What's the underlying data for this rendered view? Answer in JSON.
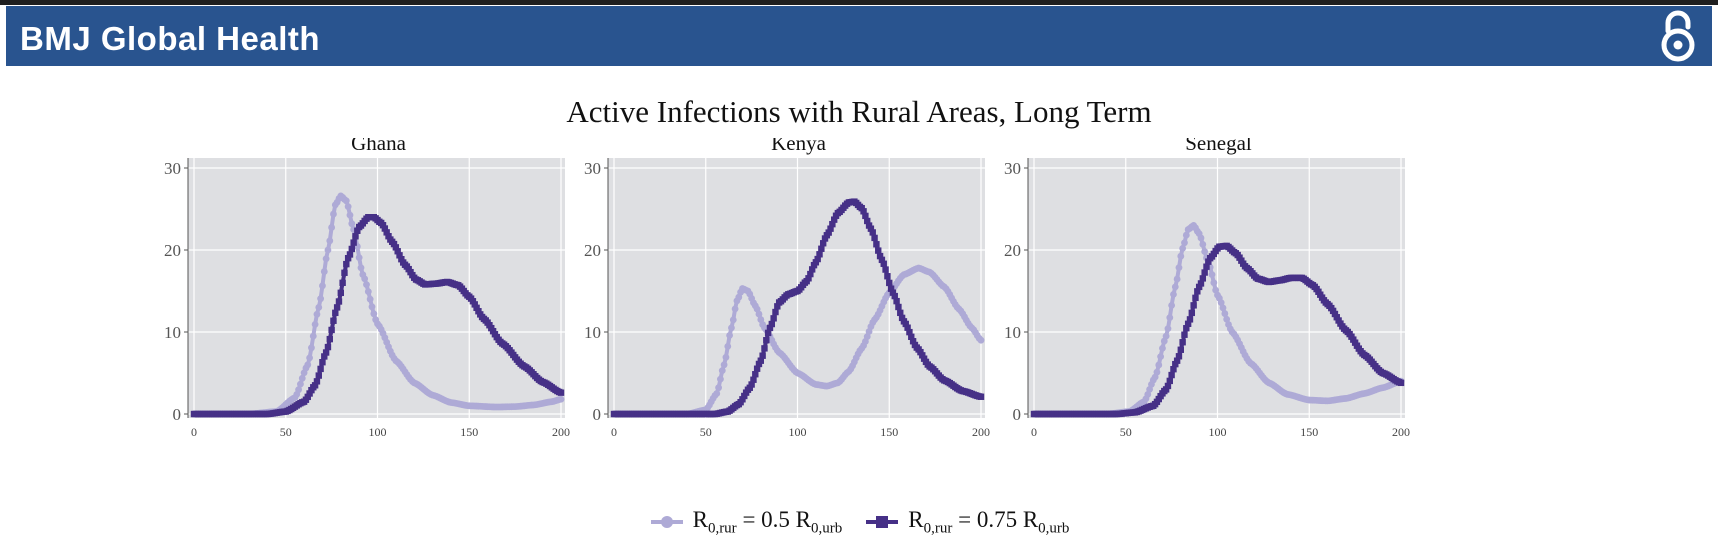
{
  "header": {
    "journal": "BMJ Global Health",
    "icon": "open-access-icon"
  },
  "colors": {
    "banner": "#29548f",
    "rural_050": "#aeaad6",
    "rural_075": "#463087",
    "panel_bg": "#dedfe2"
  },
  "chart_data": {
    "type": "line",
    "title": "Active Infections with Rural Areas, Long Term",
    "xlim": [
      0,
      200
    ],
    "ylim": [
      0,
      30
    ],
    "xticks": [
      0,
      50,
      100,
      150,
      200
    ],
    "yticks": [
      0,
      10,
      20,
      30
    ],
    "grid": true,
    "legend_position": "bottom",
    "legend": [
      {
        "pre": "R",
        "sub1": "0,rur",
        "mid": " = 0.5 R",
        "sub2": "0,urb",
        "marker": "circle"
      },
      {
        "pre": "R",
        "sub1": "0,rur",
        "mid": " = 0.75 R",
        "sub2": "0,urb",
        "marker": "square"
      }
    ],
    "panels": [
      {
        "name": "Ghana",
        "series": [
          {
            "values": [
              [
                0,
                0
              ],
              [
                30,
                0
              ],
              [
                45,
                0.3
              ],
              [
                55,
                2
              ],
              [
                62,
                6
              ],
              [
                68,
                13
              ],
              [
                73,
                20
              ],
              [
                77,
                25.5
              ],
              [
                80,
                26.6
              ],
              [
                83,
                26
              ],
              [
                87,
                22.5
              ],
              [
                92,
                17
              ],
              [
                100,
                11
              ],
              [
                110,
                6.5
              ],
              [
                120,
                3.8
              ],
              [
                130,
                2.3
              ],
              [
                140,
                1.4
              ],
              [
                150,
                1
              ],
              [
                165,
                0.85
              ],
              [
                175,
                0.9
              ],
              [
                185,
                1.1
              ],
              [
                195,
                1.5
              ],
              [
                200,
                1.8
              ]
            ]
          },
          {
            "values": [
              [
                0,
                0
              ],
              [
                40,
                0
              ],
              [
                50,
                0.3
              ],
              [
                60,
                1.5
              ],
              [
                66,
                3.5
              ],
              [
                72,
                7.5
              ],
              [
                78,
                13
              ],
              [
                84,
                19
              ],
              [
                90,
                22.8
              ],
              [
                95,
                24
              ],
              [
                98,
                24
              ],
              [
                102,
                23.3
              ],
              [
                108,
                21
              ],
              [
                115,
                18.2
              ],
              [
                121,
                16.4
              ],
              [
                126,
                15.8
              ],
              [
                132,
                15.9
              ],
              [
                138,
                16.1
              ],
              [
                144,
                15.7
              ],
              [
                150,
                14.3
              ],
              [
                158,
                11.6
              ],
              [
                168,
                8.6
              ],
              [
                180,
                5.8
              ],
              [
                190,
                3.9
              ],
              [
                200,
                2.6
              ]
            ]
          }
        ]
      },
      {
        "name": "Kenya",
        "series": [
          {
            "values": [
              [
                0,
                0
              ],
              [
                40,
                0
              ],
              [
                50,
                0.5
              ],
              [
                56,
                2.5
              ],
              [
                60,
                6
              ],
              [
                64,
                10.5
              ],
              [
                67,
                13.8
              ],
              [
                70,
                15.3
              ],
              [
                73,
                15
              ],
              [
                77,
                13.2
              ],
              [
                82,
                10.5
              ],
              [
                90,
                7.5
              ],
              [
                100,
                5
              ],
              [
                110,
                3.6
              ],
              [
                116,
                3.4
              ],
              [
                122,
                3.8
              ],
              [
                128,
                5.2
              ],
              [
                135,
                8
              ],
              [
                142,
                11.5
              ],
              [
                150,
                14.8
              ],
              [
                158,
                17
              ],
              [
                166,
                17.8
              ],
              [
                172,
                17.3
              ],
              [
                180,
                15.5
              ],
              [
                188,
                12.8
              ],
              [
                195,
                10.5
              ],
              [
                200,
                9
              ]
            ]
          },
          {
            "values": [
              [
                0,
                0
              ],
              [
                55,
                0
              ],
              [
                62,
                0.3
              ],
              [
                68,
                1.2
              ],
              [
                74,
                3.2
              ],
              [
                80,
                6.5
              ],
              [
                85,
                10.5
              ],
              [
                90,
                13.6
              ],
              [
                95,
                14.6
              ],
              [
                100,
                15
              ],
              [
                105,
                16.2
              ],
              [
                110,
                18.5
              ],
              [
                116,
                21.8
              ],
              [
                122,
                24.5
              ],
              [
                128,
                25.8
              ],
              [
                131,
                25.9
              ],
              [
                135,
                25.1
              ],
              [
                140,
                22.6
              ],
              [
                146,
                18.8
              ],
              [
                152,
                14.8
              ],
              [
                158,
                11.3
              ],
              [
                165,
                8.1
              ],
              [
                172,
                5.8
              ],
              [
                180,
                4.1
              ],
              [
                190,
                2.8
              ],
              [
                200,
                2.1
              ]
            ]
          }
        ]
      },
      {
        "name": "Senegal",
        "series": [
          {
            "values": [
              [
                0,
                0
              ],
              [
                40,
                0
              ],
              [
                52,
                0.3
              ],
              [
                60,
                1.5
              ],
              [
                66,
                4.5
              ],
              [
                72,
                9.5
              ],
              [
                77,
                15.5
              ],
              [
                81,
                20.2
              ],
              [
                84,
                22.5
              ],
              [
                87,
                23
              ],
              [
                90,
                22
              ],
              [
                95,
                18.5
              ],
              [
                100,
                14.5
              ],
              [
                108,
                10
              ],
              [
                118,
                6.2
              ],
              [
                128,
                3.8
              ],
              [
                138,
                2.4
              ],
              [
                150,
                1.7
              ],
              [
                160,
                1.6
              ],
              [
                170,
                1.9
              ],
              [
                180,
                2.5
              ],
              [
                190,
                3.2
              ],
              [
                200,
                4
              ]
            ]
          },
          {
            "values": [
              [
                0,
                0
              ],
              [
                45,
                0
              ],
              [
                55,
                0.2
              ],
              [
                65,
                1
              ],
              [
                72,
                3
              ],
              [
                78,
                6.5
              ],
              [
                84,
                11
              ],
              [
                90,
                15.5
              ],
              [
                96,
                19
              ],
              [
                101,
                20.4
              ],
              [
                105,
                20.5
              ],
              [
                110,
                19.6
              ],
              [
                116,
                17.8
              ],
              [
                122,
                16.5
              ],
              [
                128,
                16.1
              ],
              [
                134,
                16.3
              ],
              [
                140,
                16.6
              ],
              [
                146,
                16.6
              ],
              [
                152,
                15.7
              ],
              [
                160,
                13.4
              ],
              [
                170,
                10.2
              ],
              [
                180,
                7.2
              ],
              [
                190,
                5
              ],
              [
                200,
                3.8
              ]
            ]
          }
        ]
      }
    ]
  }
}
